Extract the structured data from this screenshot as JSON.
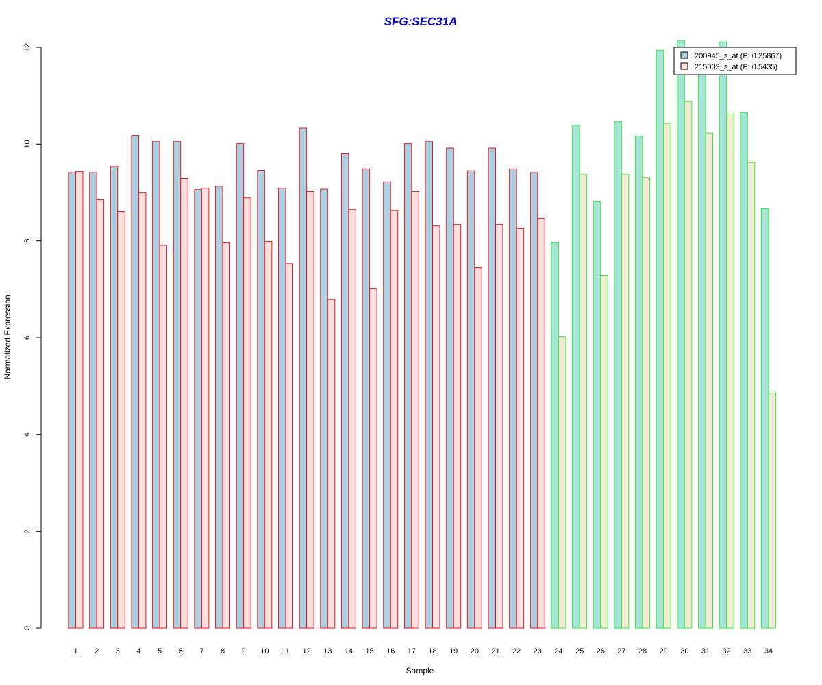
{
  "chart_data": {
    "type": "bar",
    "title": "SFG:SEC31A",
    "xlabel": "Sample",
    "ylabel": "Normalized Expression",
    "ylim": [
      0,
      12
    ],
    "yticks": [
      0,
      2,
      4,
      6,
      8,
      10,
      12
    ],
    "legend_position": "top-right",
    "grid": false,
    "categories": [
      "1",
      "2",
      "3",
      "4",
      "5",
      "6",
      "7",
      "8",
      "9",
      "10",
      "11",
      "12",
      "13",
      "14",
      "15",
      "16",
      "17",
      "18",
      "19",
      "20",
      "21",
      "22",
      "23",
      "24",
      "25",
      "26",
      "27",
      "28",
      "29",
      "30",
      "31",
      "32",
      "33",
      "34"
    ],
    "groups": [
      {
        "samples_from": 1,
        "samples_to": 23,
        "border_color": "#e8141c",
        "fills": [
          "#aecfe0",
          "#fde0dd"
        ]
      },
      {
        "samples_from": 24,
        "samples_to": 34,
        "border_color": "#33ee33",
        "fills": [
          "#a6e3d8",
          "#f3ecd4"
        ]
      }
    ],
    "series": [
      {
        "name": "200945_s_at (P: 0.25867)",
        "legend_fill": "#aecfe0",
        "values": [
          9.41,
          9.41,
          9.54,
          10.18,
          10.05,
          10.05,
          9.06,
          9.13,
          10.01,
          9.46,
          9.09,
          10.33,
          9.07,
          9.8,
          9.49,
          9.22,
          10.01,
          10.05,
          9.92,
          9.45,
          9.92,
          9.49,
          9.41,
          7.96,
          10.39,
          8.81,
          10.47,
          10.17,
          11.94,
          12.14,
          11.65,
          12.11,
          10.65,
          8.67
        ]
      },
      {
        "name": "215009_s_at (P: 0.5435)",
        "legend_fill": "#fde0dd",
        "values": [
          9.43,
          8.85,
          8.61,
          8.99,
          7.91,
          9.29,
          9.09,
          7.96,
          8.89,
          7.99,
          7.53,
          9.02,
          6.79,
          8.65,
          7.01,
          8.63,
          9.02,
          8.31,
          8.34,
          7.45,
          8.34,
          8.26,
          8.47,
          6.02,
          9.37,
          7.28,
          9.37,
          9.3,
          10.43,
          10.88,
          10.23,
          10.62,
          9.62,
          4.86
        ]
      }
    ]
  },
  "colors": {
    "title": "#0000cc",
    "axis": "#000000",
    "legend_border": "#000000"
  }
}
